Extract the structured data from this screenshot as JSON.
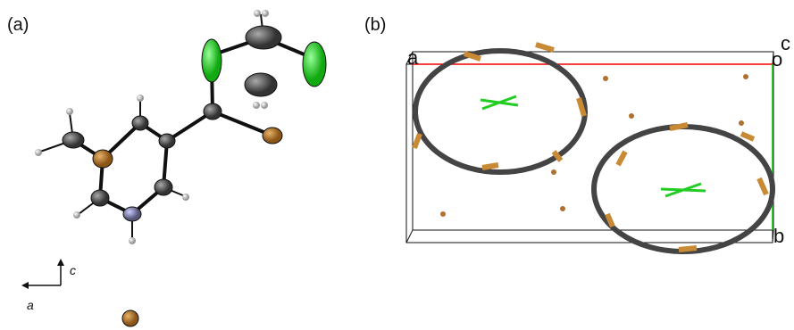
{
  "panels": [
    {
      "label": "(a)",
      "axes": {
        "vertical": "c",
        "horizontal": "a"
      }
    },
    {
      "label": "(b)",
      "axes": {
        "a": "a",
        "origin": "o",
        "c": "c",
        "b": "b"
      }
    }
  ]
}
